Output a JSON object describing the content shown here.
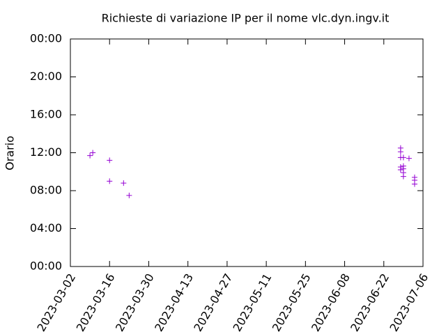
{
  "chart_data": {
    "type": "scatter",
    "title": "Richieste di variazione IP per il nome vlc.dyn.ingv.it",
    "y_label": "Orario",
    "marker": "+",
    "color": "#9400d3",
    "grid": false,
    "x": [
      "2023-03-09",
      "2023-03-10",
      "2023-03-16",
      "2023-03-16",
      "2023-03-21",
      "2023-03-23",
      "2023-06-28",
      "2023-06-28",
      "2023-06-28",
      "2023-06-28",
      "2023-06-28",
      "2023-06-29",
      "2023-06-29",
      "2023-06-29",
      "2023-06-29",
      "2023-06-29",
      "2023-07-01",
      "2023-07-03",
      "2023-07-03",
      "2023-07-03"
    ],
    "values": [
      11.7,
      12.0,
      11.2,
      9.0,
      8.8,
      7.5,
      12.5,
      12.1,
      11.5,
      10.5,
      10.2,
      11.5,
      10.6,
      10.3,
      9.9,
      9.5,
      11.4,
      9.4,
      9.1,
      8.7
    ],
    "xlim": [
      "2023-03-02",
      "2023-07-06"
    ],
    "xticks": [
      "2023-03-02",
      "2023-03-16",
      "2023-03-30",
      "2023-04-13",
      "2023-04-27",
      "2023-05-11",
      "2023-05-25",
      "2023-06-08",
      "2023-06-22",
      "2023-07-06"
    ],
    "ylim": [
      0,
      24
    ],
    "yticks": [
      {
        "value": 0,
        "label": "00:00"
      },
      {
        "value": 4,
        "label": "04:00"
      },
      {
        "value": 8,
        "label": "08:00"
      },
      {
        "value": 12,
        "label": "12:00"
      },
      {
        "value": 16,
        "label": "16:00"
      },
      {
        "value": 20,
        "label": "20:00"
      },
      {
        "value": 24,
        "label": "00:00"
      }
    ]
  }
}
